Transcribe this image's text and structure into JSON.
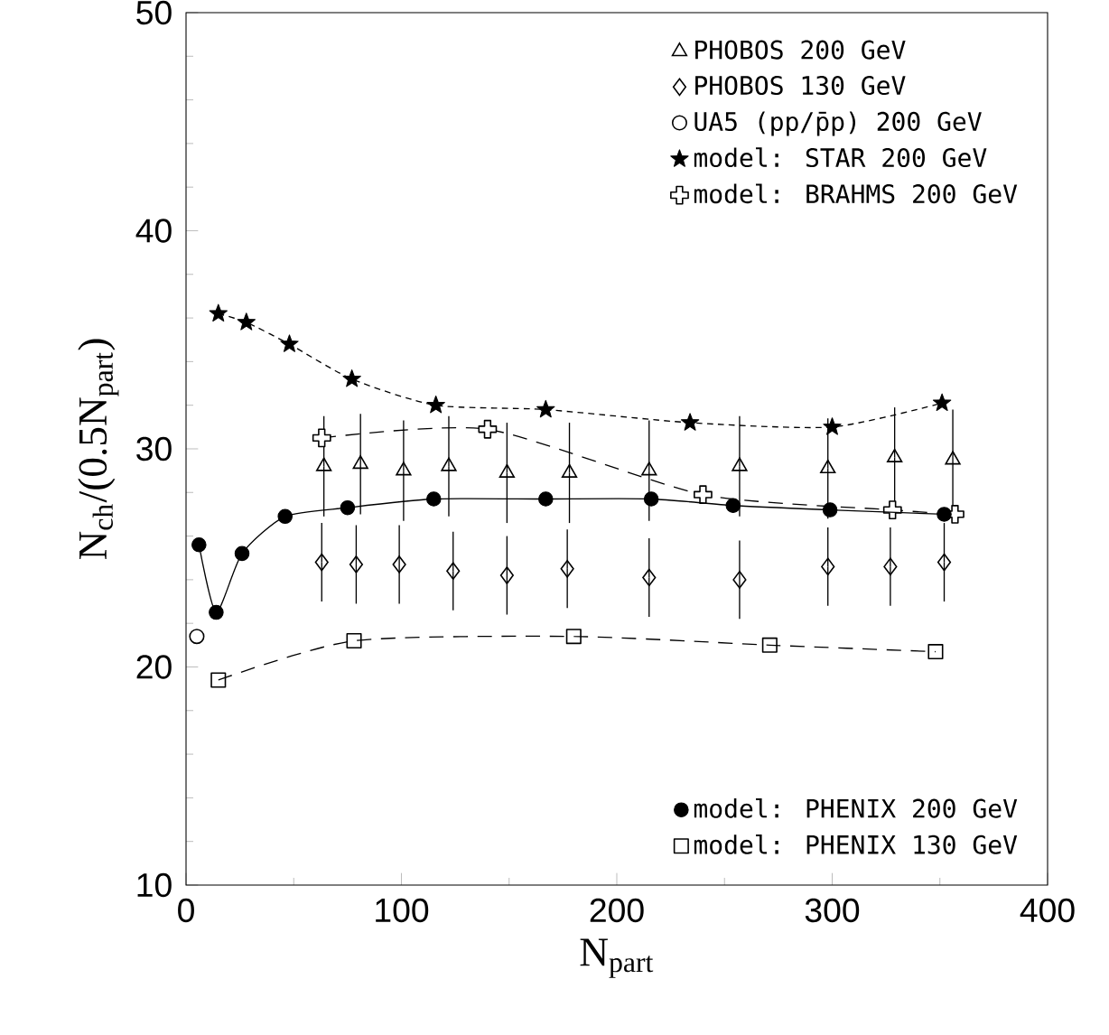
{
  "chart_data": {
    "type": "scatter",
    "xlabel": "N$_{part}$",
    "ylabel": "N$_{ch}$/(0.5N$_{part}$)",
    "xlim": [
      0,
      400
    ],
    "ylim": [
      10,
      50
    ],
    "xticks": [
      0,
      100,
      200,
      300,
      400
    ],
    "yticks": [
      10,
      20,
      30,
      40,
      50
    ],
    "legend": "top right",
    "grid": false,
    "series": [
      {
        "name": "PHOBOS 200 GeV",
        "marker": "triangle",
        "color": "#000000",
        "x": [
          64,
          81,
          101,
          122,
          149,
          178,
          215,
          257,
          298,
          329,
          356
        ],
        "values": [
          29.2,
          29.3,
          29.0,
          29.2,
          28.9,
          28.9,
          29.0,
          29.2,
          29.1,
          29.6,
          29.5
        ],
        "errors": [
          2.3,
          2.3,
          2.3,
          2.3,
          2.3,
          2.3,
          2.3,
          2.3,
          2.3,
          2.3,
          2.3
        ]
      },
      {
        "name": "PHOBOS 130 GeV",
        "marker": "diamond",
        "color": "#000000",
        "x": [
          63,
          79,
          99,
          124,
          149,
          177,
          215,
          257,
          298,
          327,
          352
        ],
        "values": [
          24.8,
          24.7,
          24.7,
          24.4,
          24.2,
          24.5,
          24.1,
          24.0,
          24.6,
          24.6,
          24.8
        ],
        "errors": [
          1.8,
          1.8,
          1.8,
          1.8,
          1.8,
          1.8,
          1.8,
          1.8,
          1.8,
          1.8,
          1.8
        ]
      },
      {
        "name": "UA5 (pp/p̄p) 200 GeV",
        "marker": "circle",
        "color": "#000000",
        "x": [
          5
        ],
        "values": [
          21.4
        ]
      },
      {
        "name": "model: STAR 200 GeV",
        "type": "line",
        "marker": "star",
        "line_style": "dotted",
        "color": "#000000",
        "x": [
          15,
          28,
          48,
          77,
          116,
          167,
          234,
          300,
          351
        ],
        "values": [
          36.2,
          35.8,
          34.8,
          33.2,
          32.0,
          31.8,
          31.2,
          31.0,
          32.1
        ]
      },
      {
        "name": "model: BRAHMS 200 GeV",
        "type": "line",
        "marker": "cross",
        "line_style": "dashed",
        "color": "#000000",
        "x": [
          63,
          140,
          240,
          328,
          357
        ],
        "values": [
          30.5,
          30.9,
          27.9,
          27.2,
          27.0
        ]
      },
      {
        "name": "model: PHENIX 200 GeV",
        "type": "line",
        "marker": "circle",
        "line_style": "solid",
        "color": "#000000",
        "x": [
          6,
          14,
          26,
          46,
          75,
          115,
          167,
          216,
          254,
          299,
          352
        ],
        "values": [
          25.6,
          22.5,
          25.2,
          26.9,
          27.3,
          27.7,
          27.7,
          27.7,
          27.4,
          27.2,
          27.0
        ]
      },
      {
        "name": "model: PHENIX 130 GeV",
        "type": "line",
        "marker": "square",
        "line_style": "dashed",
        "color": "#000000",
        "x": [
          15,
          78,
          180,
          271,
          348
        ],
        "values": [
          19.4,
          21.2,
          21.4,
          21.0,
          20.7
        ]
      }
    ]
  }
}
